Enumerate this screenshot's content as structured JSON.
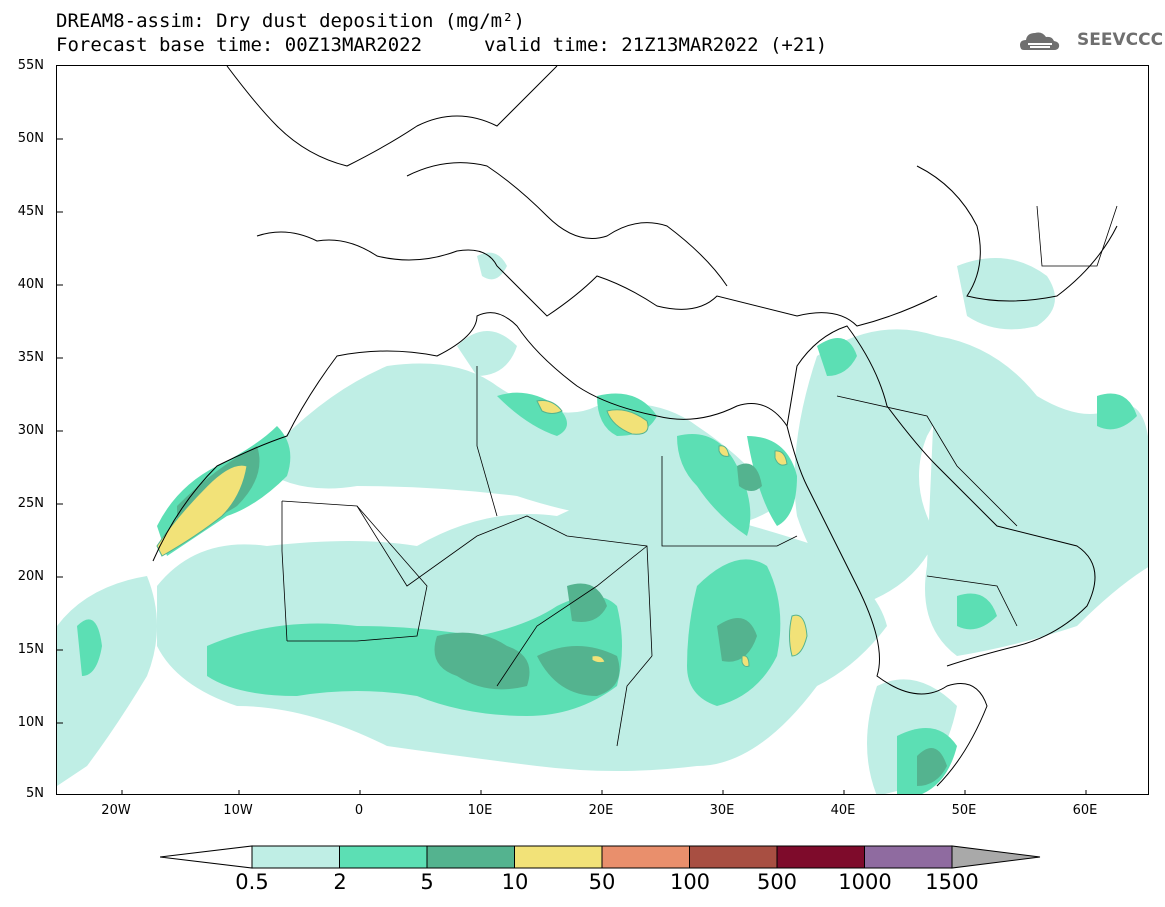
{
  "title": {
    "line1": "DREAM8-assim: Dry dust deposition (mg/m²)",
    "line2": "Forecast base time: 00Z13MAR2022",
    "valid": "valid time: 21Z13MAR2022 (+21)"
  },
  "logo": {
    "text": "SEEVCCC",
    "icon": "cloud-icon"
  },
  "lat_labels": [
    "55N",
    "50N",
    "45N",
    "40N",
    "35N",
    "30N",
    "25N",
    "20N",
    "15N",
    "10N",
    "5N"
  ],
  "lon_labels": [
    "20W",
    "10W",
    "0",
    "10E",
    "20E",
    "30E",
    "40E",
    "50E",
    "60E"
  ],
  "colorbar": {
    "labels": [
      "0.5",
      "2",
      "5",
      "10",
      "50",
      "100",
      "500",
      "1000",
      "1500"
    ],
    "colors": [
      "#bfeee5",
      "#5cdfb4",
      "#54b38f",
      "#f2e278",
      "#e98f6c",
      "#a84f42",
      "#7e0b2b",
      "#8f6ba0",
      "#a9a9a9"
    ]
  }
}
